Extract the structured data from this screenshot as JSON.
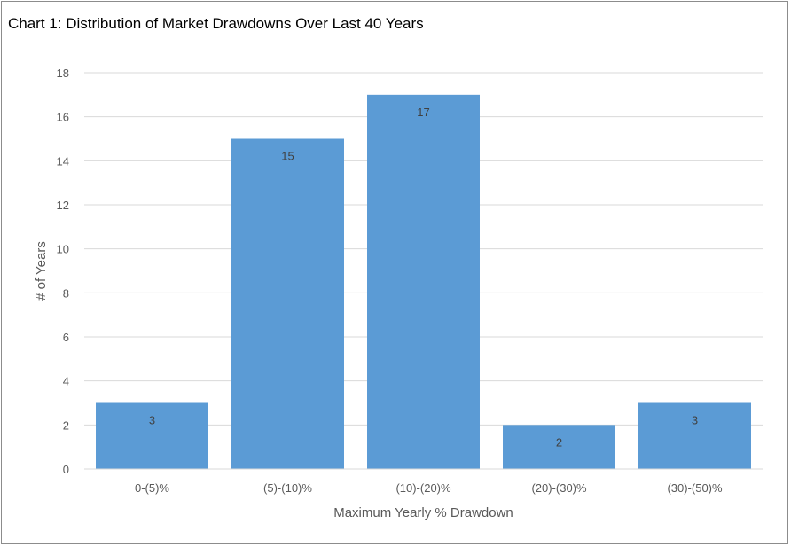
{
  "chart_data": {
    "type": "bar",
    "title": "Chart 1: Distribution of Market Drawdowns Over Last 40 Years",
    "categories": [
      "0-(5)%",
      "(5)-(10)%",
      "(10)-(20)%",
      "(20)-(30)%",
      "(30)-(50)%"
    ],
    "values": [
      3,
      15,
      17,
      2,
      3
    ],
    "xlabel": "Maximum Yearly % Drawdown",
    "ylabel": "# of Years",
    "ylim": [
      0,
      18
    ],
    "yticks": [
      0,
      2,
      4,
      6,
      8,
      10,
      12,
      14,
      16,
      18
    ],
    "grid": true,
    "legend": "none",
    "colors": {
      "bar": "#5b9bd5",
      "grid": "#d9d9d9",
      "text": "#595959"
    }
  }
}
